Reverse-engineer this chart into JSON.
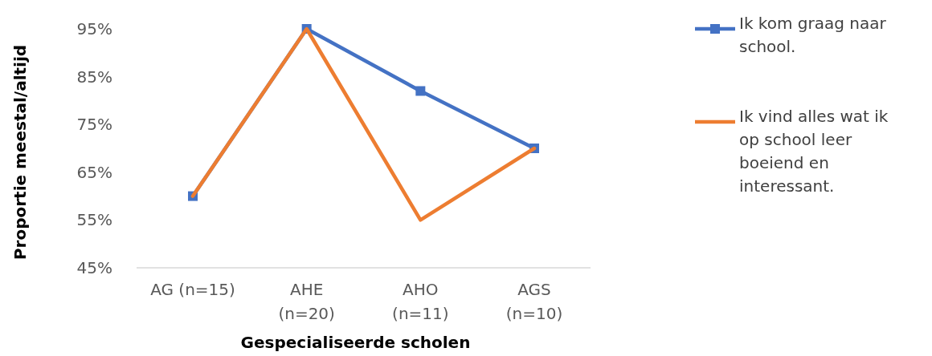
{
  "chart_data": {
    "type": "line",
    "xlabel": "Gespecialiseerde scholen",
    "ylabel": "Proportie meestal/altijd",
    "categories": [
      "AG (n=15)",
      "AHE (n=20)",
      "AHO (n=11)",
      "AGS (n=10)"
    ],
    "series": [
      {
        "name": "Ik kom graag naar school.",
        "color": "#4472c4",
        "values": [
          60,
          95,
          82,
          70
        ],
        "marker": "square"
      },
      {
        "name": "Ik vind alles wat ik op school leer boeiend en interessant.",
        "color": "#ed7d31",
        "values": [
          60,
          95,
          55,
          70
        ],
        "marker": "none"
      }
    ],
    "ylim": [
      45,
      95
    ],
    "yticks": [
      {
        "value": 45,
        "label": "45%"
      },
      {
        "value": 55,
        "label": "55%"
      },
      {
        "value": 65,
        "label": "65%"
      },
      {
        "value": 75,
        "label": "75%"
      },
      {
        "value": 85,
        "label": "85%"
      },
      {
        "value": 95,
        "label": "95%"
      }
    ],
    "grid": false,
    "legend": "right",
    "line_style": "solid"
  }
}
